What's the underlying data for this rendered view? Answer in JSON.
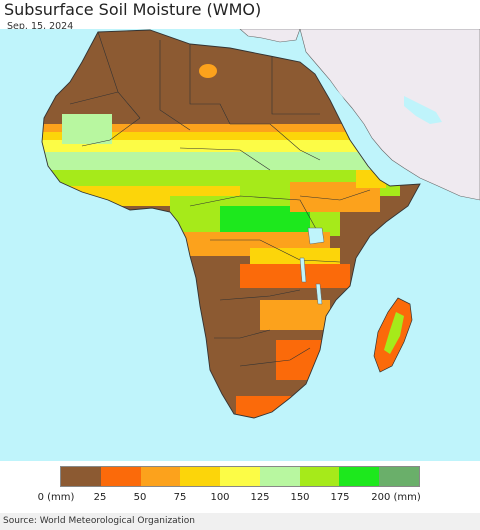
{
  "header": {
    "title": "Subsurface Soil Moisture (WMO)",
    "date": "Sep. 15, 2024"
  },
  "legend": {
    "unit_label": "0 (mm)",
    "tick_labels": [
      "25",
      "50",
      "75",
      "100",
      "125",
      "150",
      "175",
      "200 (mm)"
    ],
    "swatches": [
      {
        "range": "0-25",
        "color": "#8c5a32"
      },
      {
        "range": "25-50",
        "color": "#fb6a0a"
      },
      {
        "range": "50-75",
        "color": "#fca21c"
      },
      {
        "range": "75-100",
        "color": "#fcd50a"
      },
      {
        "range": "100-125",
        "color": "#fcfc46"
      },
      {
        "range": "125-150",
        "color": "#b8f7a0"
      },
      {
        "range": "150-175",
        "color": "#a6ea1a"
      },
      {
        "range": "175-200",
        "color": "#1de81d"
      },
      {
        "range": "200+",
        "color": "#6aaf6a"
      }
    ]
  },
  "map": {
    "ocean_color": "#bff4fb",
    "nodata_land_color": "#efeaf0"
  },
  "footer": {
    "source": "Source: World Meteorological Organization"
  }
}
